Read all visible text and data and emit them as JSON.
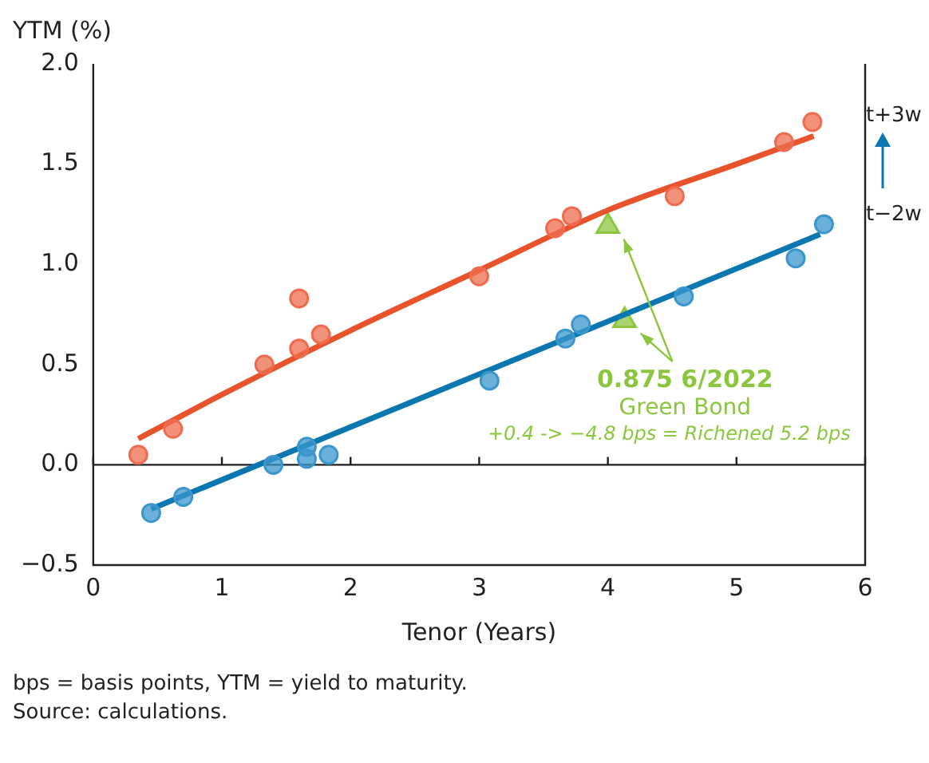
{
  "chart_data": {
    "type": "scatter",
    "ylabel": "YTM (%)",
    "xlabel": "Tenor (Years)",
    "xlim": [
      0,
      6
    ],
    "xticks": [
      0,
      1,
      2,
      3,
      4,
      5,
      6
    ],
    "ylim": [
      -0.5,
      2.0
    ],
    "yticks": [
      {
        "value": -0.5,
        "label": "−0.5"
      },
      {
        "value": 0,
        "label": "0.0"
      },
      {
        "value": 0.5,
        "label": "0.5"
      },
      {
        "value": 1,
        "label": "1.0"
      },
      {
        "value": 1.5,
        "label": "1.5"
      },
      {
        "value": 2,
        "label": "2.0"
      }
    ],
    "grid": false,
    "legend": false,
    "ref_lines": [
      {
        "axis": "y",
        "value": 0,
        "color": "#231f20"
      }
    ],
    "series": [
      {
        "marker": "circle",
        "color": "#ee6c4d",
        "x": [
          0.35,
          0.62,
          1.33,
          1.6,
          1.6,
          1.77,
          3.0,
          3.59,
          3.72,
          4.52,
          5.37,
          5.59
        ],
        "values": [
          0.05,
          0.18,
          0.5,
          0.58,
          0.83,
          0.65,
          0.94,
          1.18,
          1.24,
          1.34,
          1.61,
          1.71
        ]
      },
      {
        "type": "line",
        "marker": "none",
        "color": "#e9532b",
        "x": [
          0.35,
          1,
          2,
          3,
          4,
          5,
          5.6
        ],
        "values": [
          0.13,
          0.35,
          0.67,
          0.97,
          1.27,
          1.5,
          1.64
        ]
      },
      {
        "marker": "circle",
        "color": "#3a96cc",
        "x": [
          0.45,
          0.7,
          1.4,
          1.66,
          1.66,
          1.83,
          3.08,
          3.67,
          3.79,
          4.59,
          5.46,
          5.68
        ],
        "values": [
          -0.24,
          -0.16,
          0.0,
          0.09,
          0.03,
          0.05,
          0.42,
          0.63,
          0.7,
          0.84,
          1.03,
          1.2
        ]
      },
      {
        "type": "line",
        "marker": "none",
        "color": "#0a77b0",
        "x": [
          0.45,
          5.65
        ],
        "values": [
          -0.22,
          1.15
        ]
      },
      {
        "marker": "triangle",
        "color": "#8cc63f",
        "x": [
          4.0,
          4.13
        ],
        "values": [
          1.19,
          0.72
        ]
      }
    ],
    "annotations": [
      "0.875 6/2022",
      "Green Bond",
      "+0.4 -> −4.8 bps = Richened 5.2 bps",
      "t+3w",
      "t−2w",
      "bps = basis points, YTM = yield to maturity.",
      "Source: calculations."
    ]
  }
}
